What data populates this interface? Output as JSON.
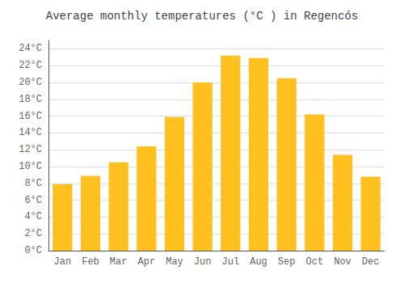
{
  "chart_data": {
    "type": "bar",
    "title": "Average monthly temperatures (°C ) in Regencós",
    "categories": [
      "Jan",
      "Feb",
      "Mar",
      "Apr",
      "May",
      "Jun",
      "Jul",
      "Aug",
      "Sep",
      "Oct",
      "Nov",
      "Dec"
    ],
    "values": [
      7.9,
      8.9,
      10.5,
      12.4,
      15.9,
      20.0,
      23.2,
      22.9,
      20.5,
      16.2,
      11.4,
      8.8
    ],
    "color": "#FFC020",
    "ylim": [
      0,
      25
    ],
    "yticks": [
      {
        "value": 0,
        "label": "0°C"
      },
      {
        "value": 2,
        "label": "2°C"
      },
      {
        "value": 4,
        "label": "4°C"
      },
      {
        "value": 6,
        "label": "6°C"
      },
      {
        "value": 8,
        "label": "8°C"
      },
      {
        "value": 10,
        "label": "10°C"
      },
      {
        "value": 12,
        "label": "12°C"
      },
      {
        "value": 14,
        "label": "14°C"
      },
      {
        "value": 16,
        "label": "16°C"
      },
      {
        "value": 18,
        "label": "18°C"
      },
      {
        "value": 20,
        "label": "20°C"
      },
      {
        "value": 22,
        "label": "22°C"
      },
      {
        "value": 24,
        "label": "24°C"
      }
    ],
    "grid": true
  }
}
